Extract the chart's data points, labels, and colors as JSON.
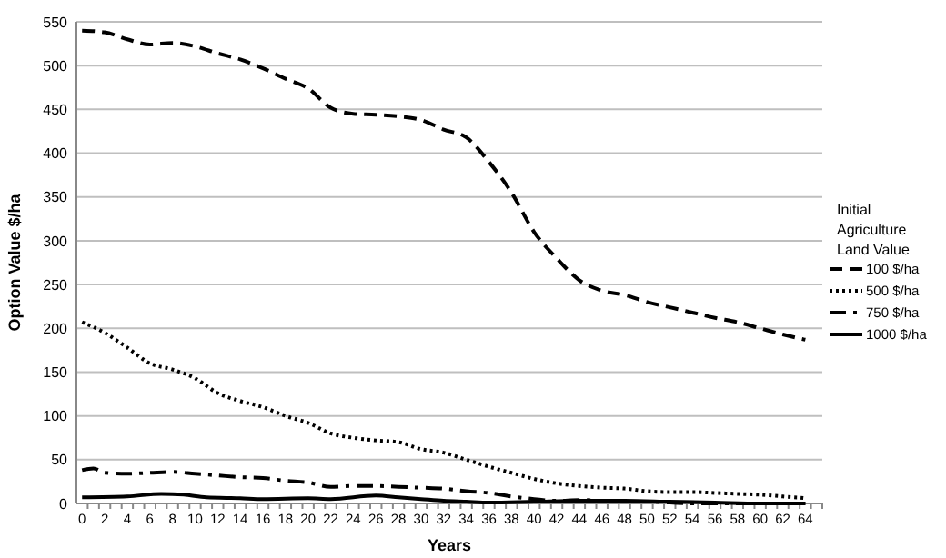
{
  "chart_data": {
    "type": "line",
    "xlabel": "Years",
    "ylabel": "Option Value $/ha",
    "legend_title": "Initial Agriculture Land Value",
    "xlim": [
      -0.5,
      65.5
    ],
    "xticks": [
      0,
      2,
      4,
      6,
      8,
      10,
      12,
      14,
      16,
      18,
      20,
      22,
      24,
      26,
      28,
      30,
      32,
      34,
      36,
      38,
      40,
      42,
      44,
      46,
      48,
      50,
      52,
      54,
      56,
      58,
      60,
      62,
      64
    ],
    "ylim": [
      0,
      550
    ],
    "yticks": [
      0,
      50,
      100,
      150,
      200,
      250,
      300,
      350,
      400,
      450,
      500,
      550
    ],
    "grid": "y",
    "legend": "right",
    "series": [
      {
        "name": "100 $/ha",
        "color": "#000000",
        "line_style": "dashed",
        "x": [
          0,
          2,
          4,
          6,
          8,
          10,
          12,
          14,
          16,
          18,
          20,
          22,
          24,
          26,
          28,
          30,
          32,
          34,
          36,
          38,
          40,
          42,
          44,
          46,
          48,
          50,
          52,
          54,
          56,
          58,
          60,
          62,
          64
        ],
        "values": [
          540,
          538,
          530,
          524,
          526,
          522,
          514,
          507,
          497,
          485,
          474,
          452,
          445,
          444,
          442,
          438,
          427,
          418,
          390,
          355,
          310,
          280,
          255,
          243,
          238,
          230,
          224,
          218,
          212,
          207,
          200,
          193,
          187
        ]
      },
      {
        "name": "500 $/ha",
        "color": "#000000",
        "line_style": "dotted",
        "x": [
          0,
          2,
          4,
          6,
          8,
          10,
          12,
          14,
          16,
          18,
          20,
          22,
          24,
          26,
          28,
          30,
          32,
          34,
          36,
          38,
          40,
          42,
          44,
          46,
          48,
          50,
          52,
          54,
          56,
          58,
          60,
          62,
          64
        ],
        "values": [
          207,
          195,
          178,
          160,
          153,
          143,
          126,
          117,
          110,
          100,
          92,
          80,
          75,
          72,
          70,
          62,
          58,
          50,
          42,
          35,
          28,
          23,
          20,
          18,
          17,
          14,
          13,
          13,
          12,
          11,
          10,
          8,
          6
        ]
      },
      {
        "name": "750 $/ha",
        "color": "#000000",
        "line_style": "dashdot",
        "x": [
          0,
          1,
          2,
          4,
          6,
          8,
          10,
          12,
          14,
          16,
          18,
          20,
          22,
          24,
          26,
          28,
          30,
          32,
          34,
          36,
          38,
          40,
          42,
          44,
          46,
          48,
          50,
          52,
          54,
          56,
          58,
          60,
          62,
          64
        ],
        "values": [
          38,
          40,
          35,
          34,
          35,
          36,
          34,
          32,
          30,
          29,
          26,
          24,
          19,
          20,
          20,
          19,
          18,
          17,
          14,
          12,
          8,
          5,
          3,
          4,
          3,
          2,
          2,
          1,
          0,
          0,
          0,
          0,
          0,
          0
        ]
      },
      {
        "name": "1000 $/ha",
        "color": "#000000",
        "line_style": "solid",
        "x": [
          0,
          4,
          7,
          9,
          11,
          14,
          16,
          20,
          22,
          26,
          28,
          30,
          32,
          34,
          36,
          40,
          44,
          48,
          52,
          56,
          60,
          64
        ],
        "values": [
          7,
          8,
          11,
          10,
          7,
          6,
          5,
          6,
          5,
          9,
          7,
          5,
          3,
          2,
          1,
          2,
          3,
          3,
          2,
          1,
          0,
          0
        ]
      }
    ]
  }
}
